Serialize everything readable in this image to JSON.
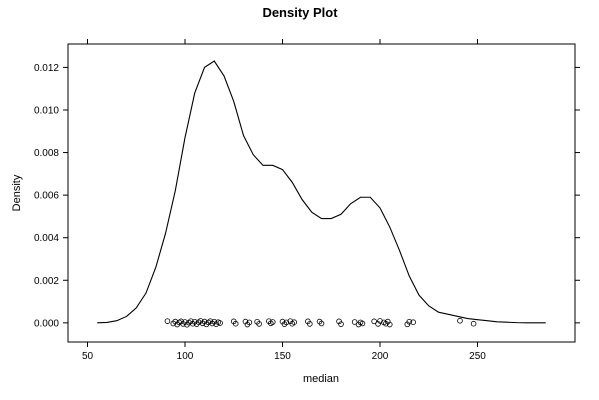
{
  "chart_data": {
    "type": "line",
    "title": "Density Plot",
    "xlabel": "median",
    "ylabel": "Density",
    "xlim": [
      40,
      300
    ],
    "ylim": [
      -0.0009,
      0.0131
    ],
    "xticks": [
      50,
      100,
      150,
      200,
      250
    ],
    "yticks": [
      0.0,
      0.002,
      0.004,
      0.006,
      0.008,
      0.01,
      0.012
    ],
    "ytick_labels": [
      "0.000",
      "0.002",
      "0.004",
      "0.006",
      "0.008",
      "0.010",
      "0.012"
    ],
    "grid": false,
    "density_curve": {
      "x": [
        55,
        60,
        65,
        70,
        75,
        80,
        85,
        90,
        95,
        100,
        105,
        110,
        115,
        120,
        125,
        130,
        135,
        140,
        145,
        150,
        155,
        160,
        165,
        170,
        175,
        180,
        185,
        190,
        195,
        200,
        205,
        210,
        215,
        220,
        225,
        230,
        235,
        240,
        245,
        250,
        255,
        260,
        265,
        270,
        275,
        280,
        285
      ],
      "y": [
        0.0,
        2e-05,
        0.0001,
        0.0003,
        0.0007,
        0.0014,
        0.0026,
        0.0042,
        0.0062,
        0.0087,
        0.0108,
        0.012,
        0.0123,
        0.0116,
        0.0104,
        0.0088,
        0.0079,
        0.0074,
        0.0074,
        0.0072,
        0.0066,
        0.0058,
        0.0052,
        0.0049,
        0.0049,
        0.0051,
        0.0056,
        0.0059,
        0.0059,
        0.0054,
        0.0045,
        0.0034,
        0.0022,
        0.0013,
        0.0008,
        0.0005,
        0.0004,
        0.0003,
        0.0002,
        0.00015,
        0.0001,
        5e-05,
        3e-05,
        1e-05,
        0.0,
        0.0,
        0.0
      ]
    },
    "rug_points": {
      "x": [
        91,
        94,
        95,
        96,
        97,
        98,
        99,
        100,
        101,
        102,
        103,
        104,
        105,
        106,
        107,
        108,
        109,
        110,
        111,
        112,
        113,
        114,
        115,
        116,
        117,
        118,
        125,
        126,
        131,
        132,
        133,
        137,
        138,
        143,
        144,
        145,
        150,
        151,
        152,
        154,
        155,
        156,
        163,
        164,
        169,
        170,
        179,
        180,
        187,
        189,
        190,
        191,
        197,
        199,
        200,
        202,
        203,
        204,
        205,
        214,
        215,
        217,
        241,
        248
      ],
      "y": [
        8e-05,
        -3e-05,
        6e-05,
        -8e-05,
        2e-05,
        7e-05,
        -5e-05,
        4e-05,
        -9e-05,
        1e-05,
        8e-05,
        -4e-05,
        5e-05,
        -6e-05,
        3e-05,
        9e-05,
        -2e-05,
        6e-05,
        -7e-05,
        2e-05,
        8e-05,
        -3e-05,
        5e-05,
        -6e-05,
        3e-05,
        -1e-05,
        7e-05,
        -4e-05,
        6e-05,
        -8e-05,
        2e-05,
        5e-05,
        -5e-05,
        8e-05,
        -2e-05,
        4e-05,
        6e-05,
        -6e-05,
        2e-05,
        8e-05,
        -4e-05,
        3e-05,
        7e-05,
        -5e-05,
        6e-05,
        -3e-05,
        7e-05,
        -6e-05,
        4e-05,
        -8e-05,
        2e-05,
        -3e-05,
        7e-05,
        -5e-05,
        9e-05,
        2e-05,
        -4e-05,
        6e-05,
        -8e-05,
        -7e-05,
        5e-05,
        3e-05,
        0.0001,
        -4e-05
      ]
    }
  }
}
